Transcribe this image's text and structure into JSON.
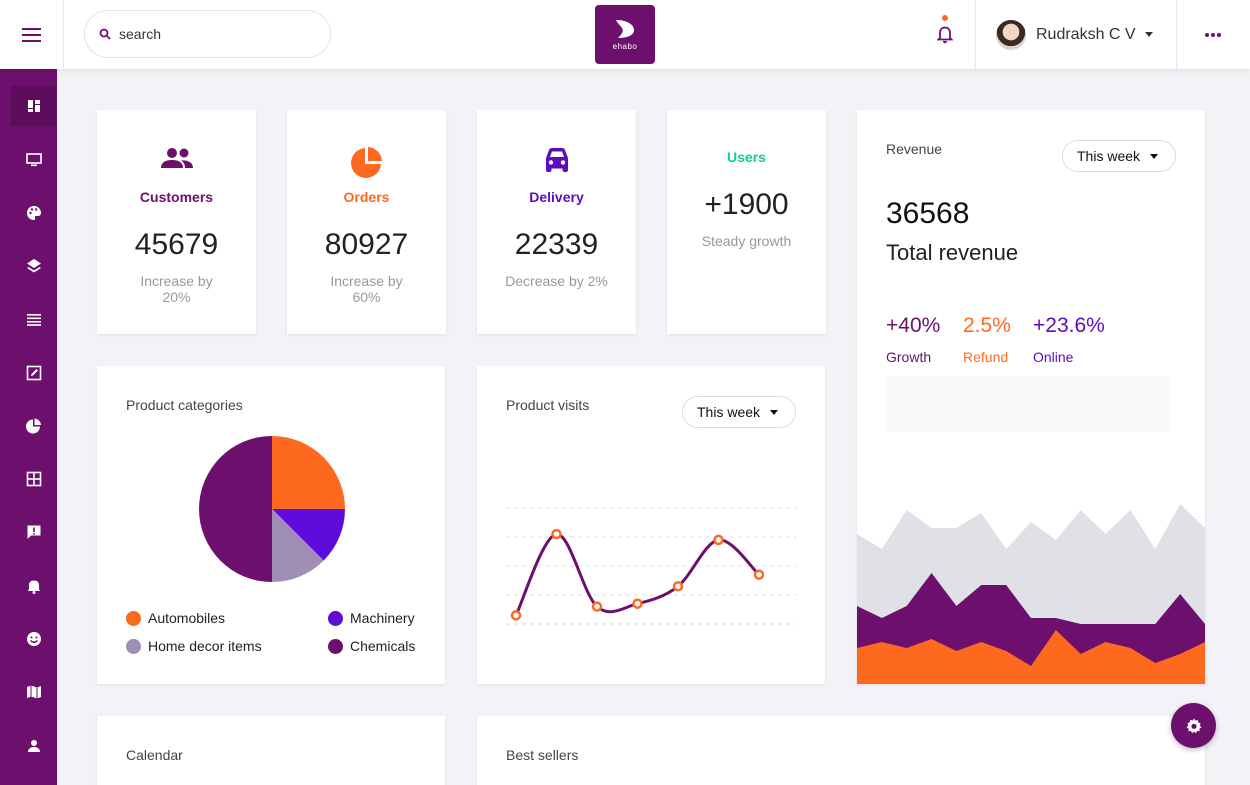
{
  "header": {
    "search_placeholder": "search",
    "logo_text": "ehabo",
    "user_name": "Rudraksh C V"
  },
  "sidebar": {
    "items": [
      {
        "icon": "dashboard-icon",
        "active": true
      },
      {
        "icon": "monitor-icon"
      },
      {
        "icon": "palette-icon"
      },
      {
        "icon": "layers-icon"
      },
      {
        "icon": "list-icon"
      },
      {
        "icon": "edit-icon"
      },
      {
        "icon": "pie-chart-icon"
      },
      {
        "icon": "grid-icon"
      },
      {
        "icon": "feedback-icon"
      },
      {
        "icon": "bell-icon"
      },
      {
        "icon": "smiley-icon"
      },
      {
        "icon": "map-icon"
      },
      {
        "icon": "user-icon"
      }
    ]
  },
  "stats": [
    {
      "label": "Customers",
      "value": "45679",
      "sub": "Increase by 20%",
      "color": "#6d0f6c",
      "icon": "people-icon"
    },
    {
      "label": "Orders",
      "value": "80927",
      "sub": "Increase by 60%",
      "color": "#fe6920",
      "icon": "pie-icon"
    },
    {
      "label": "Delivery",
      "value": "22339",
      "sub": "Decrease by 2%",
      "color": "#5e0cbf",
      "icon": "car-icon"
    }
  ],
  "users": {
    "label": "Users",
    "value": "+1900",
    "sub": "Steady growth",
    "color": "#10cf8f"
  },
  "revenue": {
    "title": "Revenue",
    "period": "This week",
    "value": "36568",
    "label": "Total revenue",
    "stats": [
      {
        "value": "+40%",
        "label": "Growth",
        "color": "#6d0f6c"
      },
      {
        "value": "2.5%",
        "label": "Refund",
        "color": "#fe6920"
      },
      {
        "value": "+23.6%",
        "label": "Online",
        "color": "#5e0cbf"
      }
    ]
  },
  "categories": {
    "title": "Product categories",
    "legend": [
      {
        "label": "Automobiles",
        "color": "#fe6920"
      },
      {
        "label": "Machinery",
        "color": "#5e0cdb"
      },
      {
        "label": "Home decor items",
        "color": "#a08eb6"
      },
      {
        "label": "Chemicals",
        "color": "#6d0f6c"
      }
    ]
  },
  "visits": {
    "title": "Product visits",
    "period": "This week"
  },
  "bottom": {
    "calendar_title": "Calendar",
    "best_sellers_title": "Best sellers"
  },
  "chart_data": [
    {
      "type": "pie",
      "labels": [
        "Automobiles",
        "Machinery",
        "Home decor items",
        "Chemicals"
      ],
      "values": [
        25,
        12.5,
        12.5,
        50
      ],
      "colors": [
        "#fe6920",
        "#5e0cdb",
        "#a08eb6",
        "#6d0f6c"
      ]
    },
    {
      "type": "line",
      "x": [
        1,
        2,
        3,
        4,
        5,
        6,
        7
      ],
      "values": [
        3,
        31,
        6,
        7,
        13,
        29,
        17
      ],
      "ylim": [
        0,
        40
      ],
      "grid": true,
      "color": "#6d0f6c",
      "marker_color": "#fe6920"
    },
    {
      "type": "area",
      "x": [
        1,
        2,
        3,
        4,
        5,
        6,
        7,
        8,
        9,
        10,
        11,
        12,
        13,
        14,
        15
      ],
      "series": [
        {
          "values": [
            50,
            45,
            58,
            52,
            52,
            57,
            45,
            54,
            48,
            58,
            50,
            58,
            45,
            60,
            52
          ],
          "color": "#dfe1e7"
        },
        {
          "values": [
            26,
            22,
            26,
            37,
            26,
            33,
            33,
            22,
            22,
            20,
            20,
            20,
            20,
            30,
            20
          ],
          "color": "#6d0f6c"
        },
        {
          "values": [
            12,
            14,
            12,
            15,
            11,
            14,
            11,
            6,
            18,
            10,
            14,
            12,
            7,
            10,
            14
          ],
          "color": "#fe6920"
        }
      ],
      "ylim": [
        0,
        60
      ]
    }
  ]
}
